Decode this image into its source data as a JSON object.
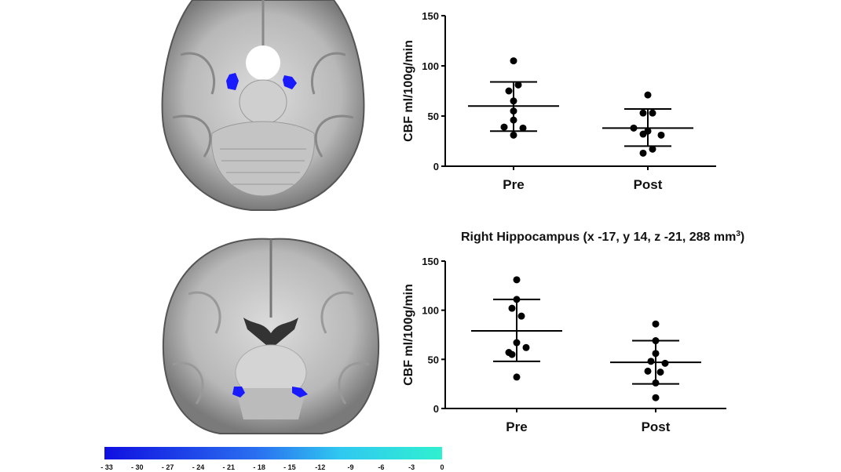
{
  "colors": {
    "cluster": "#1a1aff",
    "colorbar_start": "#1010e0",
    "colorbar_end": "#30f0d0",
    "marks": "#000000"
  },
  "colorbar": {
    "ticks": [
      "- 33",
      "- 30",
      "- 27",
      "- 24",
      "- 21",
      "- 18",
      "- 15",
      "-12",
      "-9",
      "-6",
      "-3",
      "0"
    ]
  },
  "chart_data": [
    {
      "type": "scatter",
      "title": "",
      "ylabel": "CBF ml/100g/min",
      "ylim": [
        0,
        150
      ],
      "yticks": [
        "0",
        "50",
        "100",
        "150"
      ],
      "categories": [
        "Pre",
        "Post"
      ],
      "series": [
        {
          "category": "Pre",
          "values": [
            105,
            81,
            75,
            65,
            55,
            46,
            39,
            38,
            31
          ],
          "mean": 60,
          "sd_upper": 84,
          "sd_lower": 35
        },
        {
          "category": "Post",
          "values": [
            71,
            53,
            53,
            38,
            35,
            32,
            31,
            17,
            13
          ],
          "mean": 38,
          "sd_upper": 57,
          "sd_lower": 20
        }
      ]
    },
    {
      "type": "scatter",
      "title": "Right Hippocampus (x -17, y 14, z -21, 288 mm",
      "title_superscript": "3",
      "title_close": ")",
      "ylabel": "CBF ml/100g/min",
      "ylim": [
        0,
        150
      ],
      "yticks": [
        "0",
        "50",
        "100",
        "150"
      ],
      "categories": [
        "Pre",
        "Post"
      ],
      "series": [
        {
          "category": "Pre",
          "values": [
            131,
            111,
            102,
            94,
            67,
            62,
            57,
            55,
            32
          ],
          "mean": 79,
          "sd_upper": 111,
          "sd_lower": 48
        },
        {
          "category": "Post",
          "values": [
            86,
            69,
            56,
            48,
            46,
            38,
            37,
            26,
            11
          ],
          "mean": 47,
          "sd_upper": 69,
          "sd_lower": 25
        }
      ]
    }
  ]
}
